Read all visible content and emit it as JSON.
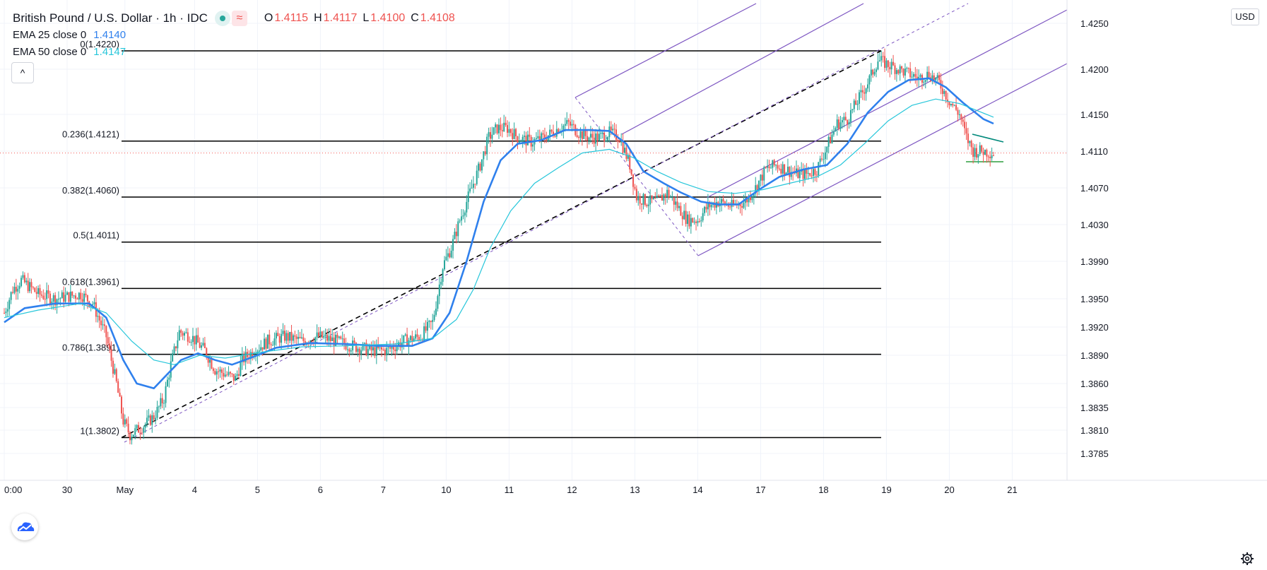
{
  "legend": {
    "title": "British Pound / U.S. Dollar · 1h · IDC",
    "wave_glyph": "≈",
    "ohlc": [
      {
        "key": "O",
        "value": "1.4115"
      },
      {
        "key": "H",
        "value": "1.4117"
      },
      {
        "key": "L",
        "value": "1.4100"
      },
      {
        "key": "C",
        "value": "1.4108"
      }
    ],
    "ema25": {
      "label": "EMA 25 close 0",
      "value": "1.4140"
    },
    "ema50": {
      "label": "EMA 50 close 0",
      "value": "1.4147"
    },
    "collapse_glyph": "^"
  },
  "price_axis": {
    "currency": "USD"
  },
  "colors": {
    "up": "#26a69a",
    "down": "#ef5350",
    "ema25": "#2f80ed",
    "ema50": "#26c6da",
    "fib": "#000000",
    "pitchfork": "#7e57c2",
    "current_price": "#ef5350",
    "pattern": "#00897b"
  },
  "icons": {
    "logo": "tradingview-cloud-icon",
    "settings": "gear-icon",
    "collapse": "chevron-up-icon"
  },
  "chart_data": {
    "type": "candlestick",
    "title": "British Pound / U.S. Dollar · 1h · IDC",
    "xlabel": "",
    "ylabel": "",
    "ylim": [
      1.377,
      1.4245
    ],
    "x_ticks": [
      "0:00",
      "30",
      "May",
      "4",
      "5",
      "6",
      "7",
      "10",
      "11",
      "12",
      "13",
      "14",
      "17",
      "18",
      "19",
      "20",
      "21"
    ],
    "y_ticks": [
      "1.4250",
      "1.4200",
      "1.4150",
      "1.4110",
      "1.4070",
      "1.4030",
      "1.3990",
      "1.3950",
      "1.3920",
      "1.3890",
      "1.3860",
      "1.3835",
      "1.3810",
      "1.3785"
    ],
    "current_price": 1.4108,
    "fib_levels": [
      {
        "label": "0(1.4220)",
        "value": 1.422
      },
      {
        "label": "0.236(1.4121)",
        "value": 1.4121
      },
      {
        "label": "0.382(1.4060)",
        "value": 1.406
      },
      {
        "label": "0.5(1.4011)",
        "value": 1.4011
      },
      {
        "label": "0.618(1.3961)",
        "value": 1.3961
      },
      {
        "label": "0.786(1.3891)",
        "value": 1.3891
      },
      {
        "label": "1(1.3802)",
        "value": 1.3802
      }
    ],
    "price_path": [
      [
        0,
        1.3935
      ],
      [
        5,
        1.396
      ],
      [
        10,
        1.397
      ],
      [
        20,
        1.3955
      ],
      [
        30,
        1.395
      ],
      [
        45,
        1.3955
      ],
      [
        52,
        1.3945
      ],
      [
        60,
        1.391
      ],
      [
        66,
        1.386
      ],
      [
        70,
        1.382
      ],
      [
        74,
        1.3805
      ],
      [
        82,
        1.3815
      ],
      [
        88,
        1.3825
      ],
      [
        94,
        1.3845
      ],
      [
        98,
        1.388
      ],
      [
        103,
        1.3915
      ],
      [
        110,
        1.391
      ],
      [
        118,
        1.3895
      ],
      [
        124,
        1.3875
      ],
      [
        130,
        1.387
      ],
      [
        136,
        1.3865
      ],
      [
        140,
        1.3885
      ],
      [
        147,
        1.3895
      ],
      [
        155,
        1.3905
      ],
      [
        165,
        1.391
      ],
      [
        175,
        1.3905
      ],
      [
        185,
        1.391
      ],
      [
        195,
        1.3905
      ],
      [
        205,
        1.39
      ],
      [
        215,
        1.3895
      ],
      [
        225,
        1.3895
      ],
      [
        235,
        1.3905
      ],
      [
        245,
        1.391
      ],
      [
        252,
        1.3925
      ],
      [
        258,
        1.3985
      ],
      [
        263,
        1.4005
      ],
      [
        268,
        1.4035
      ],
      [
        274,
        1.4065
      ],
      [
        280,
        1.4095
      ],
      [
        285,
        1.4125
      ],
      [
        290,
        1.4135
      ],
      [
        296,
        1.4135
      ],
      [
        302,
        1.4125
      ],
      [
        310,
        1.412
      ],
      [
        318,
        1.4125
      ],
      [
        326,
        1.4135
      ],
      [
        332,
        1.414
      ],
      [
        338,
        1.413
      ],
      [
        344,
        1.4125
      ],
      [
        350,
        1.4125
      ],
      [
        356,
        1.413
      ],
      [
        362,
        1.4125
      ],
      [
        368,
        1.4095
      ],
      [
        372,
        1.406
      ],
      [
        378,
        1.4055
      ],
      [
        384,
        1.4055
      ],
      [
        390,
        1.4065
      ],
      [
        396,
        1.405
      ],
      [
        402,
        1.4035
      ],
      [
        408,
        1.4035
      ],
      [
        414,
        1.405
      ],
      [
        420,
        1.4055
      ],
      [
        428,
        1.405
      ],
      [
        436,
        1.4055
      ],
      [
        442,
        1.407
      ],
      [
        448,
        1.409
      ],
      [
        454,
        1.4095
      ],
      [
        460,
        1.409
      ],
      [
        466,
        1.4085
      ],
      [
        472,
        1.4085
      ],
      [
        478,
        1.409
      ],
      [
        484,
        1.4115
      ],
      [
        490,
        1.414
      ],
      [
        496,
        1.4145
      ],
      [
        502,
        1.4165
      ],
      [
        508,
        1.4185
      ],
      [
        514,
        1.421
      ],
      [
        520,
        1.4205
      ],
      [
        526,
        1.42
      ],
      [
        532,
        1.4195
      ],
      [
        538,
        1.419
      ],
      [
        544,
        1.4195
      ],
      [
        550,
        1.4185
      ],
      [
        556,
        1.4165
      ],
      [
        562,
        1.415
      ],
      [
        566,
        1.4125
      ],
      [
        570,
        1.411
      ],
      [
        576,
        1.411
      ],
      [
        582,
        1.4108
      ]
    ],
    "series": [
      {
        "name": "EMA 25 close 0",
        "value": 1.414,
        "path": [
          [
            0,
            1.3925
          ],
          [
            12,
            1.394
          ],
          [
            30,
            1.3945
          ],
          [
            50,
            1.3945
          ],
          [
            60,
            1.393
          ],
          [
            70,
            1.3885
          ],
          [
            78,
            1.386
          ],
          [
            88,
            1.3855
          ],
          [
            96,
            1.387
          ],
          [
            104,
            1.3885
          ],
          [
            114,
            1.3892
          ],
          [
            124,
            1.3885
          ],
          [
            134,
            1.388
          ],
          [
            146,
            1.3888
          ],
          [
            160,
            1.3898
          ],
          [
            180,
            1.3903
          ],
          [
            200,
            1.3902
          ],
          [
            220,
            1.39
          ],
          [
            240,
            1.39
          ],
          [
            252,
            1.3908
          ],
          [
            262,
            1.3935
          ],
          [
            272,
            1.399
          ],
          [
            282,
            1.4055
          ],
          [
            292,
            1.41
          ],
          [
            302,
            1.4118
          ],
          [
            316,
            1.4122
          ],
          [
            330,
            1.4133
          ],
          [
            344,
            1.4133
          ],
          [
            356,
            1.4132
          ],
          [
            366,
            1.4118
          ],
          [
            376,
            1.4088
          ],
          [
            388,
            1.4075
          ],
          [
            398,
            1.4065
          ],
          [
            410,
            1.4055
          ],
          [
            420,
            1.4052
          ],
          [
            432,
            1.4052
          ],
          [
            444,
            1.4068
          ],
          [
            456,
            1.4082
          ],
          [
            470,
            1.409
          ],
          [
            484,
            1.4095
          ],
          [
            496,
            1.4118
          ],
          [
            508,
            1.4152
          ],
          [
            520,
            1.4175
          ],
          [
            532,
            1.4188
          ],
          [
            544,
            1.419
          ],
          [
            554,
            1.418
          ],
          [
            564,
            1.4163
          ],
          [
            576,
            1.4145
          ],
          [
            582,
            1.414
          ]
        ]
      },
      {
        "name": "EMA 50 close 0",
        "value": 1.4147,
        "path": [
          [
            0,
            1.393
          ],
          [
            20,
            1.3938
          ],
          [
            45,
            1.3945
          ],
          [
            60,
            1.3935
          ],
          [
            75,
            1.3905
          ],
          [
            88,
            1.3885
          ],
          [
            100,
            1.388
          ],
          [
            115,
            1.389
          ],
          [
            130,
            1.3887
          ],
          [
            150,
            1.3893
          ],
          [
            175,
            1.3899
          ],
          [
            200,
            1.39
          ],
          [
            230,
            1.3902
          ],
          [
            252,
            1.3908
          ],
          [
            266,
            1.3928
          ],
          [
            276,
            1.396
          ],
          [
            286,
            1.4005
          ],
          [
            298,
            1.4045
          ],
          [
            312,
            1.4075
          ],
          [
            326,
            1.4092
          ],
          [
            340,
            1.4108
          ],
          [
            356,
            1.4112
          ],
          [
            370,
            1.4103
          ],
          [
            384,
            1.4088
          ],
          [
            398,
            1.4076
          ],
          [
            414,
            1.4066
          ],
          [
            430,
            1.4064
          ],
          [
            446,
            1.4068
          ],
          [
            462,
            1.4075
          ],
          [
            478,
            1.4082
          ],
          [
            492,
            1.4095
          ],
          [
            506,
            1.4118
          ],
          [
            520,
            1.4143
          ],
          [
            534,
            1.416
          ],
          [
            548,
            1.4167
          ],
          [
            562,
            1.4162
          ],
          [
            574,
            1.4153
          ],
          [
            582,
            1.4147
          ]
        ]
      }
    ]
  }
}
